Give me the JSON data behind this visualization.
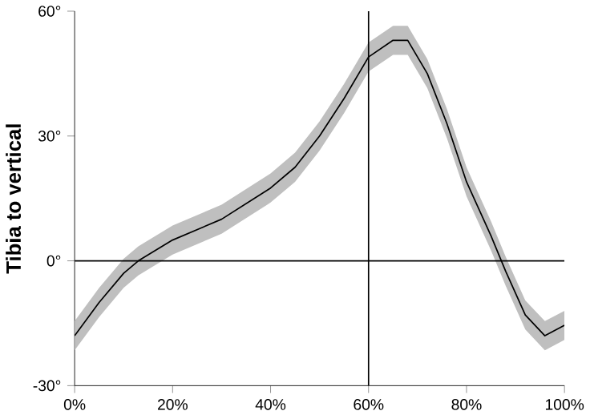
{
  "chart_data": {
    "type": "line",
    "ylabel": "Tibia to vertical",
    "x": [
      0,
      5,
      10,
      13,
      20,
      30,
      40,
      45,
      50,
      55,
      60,
      65,
      68,
      72,
      76,
      80,
      85,
      88,
      92,
      96,
      100
    ],
    "series": [
      {
        "color": "#000000",
        "values": [
          -18,
          -10,
          -3,
          0,
          5,
          10,
          17.5,
          22.5,
          30,
          39,
          49,
          53,
          53,
          45,
          33,
          19,
          6,
          -2.5,
          -13,
          -18,
          -15.5
        ],
        "lower": [
          -21.5,
          -13.5,
          -6.5,
          -3.5,
          1.5,
          6.5,
          14,
          19,
          26.5,
          35.5,
          45.5,
          49.5,
          49.5,
          41.5,
          29.5,
          15.5,
          2.5,
          -6,
          -16.5,
          -21.5,
          -19
        ],
        "upper": [
          -14.5,
          -6.5,
          0.5,
          3.5,
          8.5,
          13.5,
          21,
          26,
          33.5,
          42.5,
          52.5,
          56.5,
          56.5,
          48.5,
          36.5,
          22.5,
          9.5,
          1,
          -9.5,
          -14.5,
          -12
        ]
      }
    ],
    "xlim": [
      0,
      100
    ],
    "ylim": [
      -30,
      60
    ],
    "xticks": [
      {
        "value": 0,
        "label": "0%"
      },
      {
        "value": 20,
        "label": "20%"
      },
      {
        "value": 40,
        "label": "40%"
      },
      {
        "value": 60,
        "label": "60%"
      },
      {
        "value": 80,
        "label": "80%"
      },
      {
        "value": 100,
        "label": "100%"
      }
    ],
    "yticks": [
      {
        "value": -30,
        "label": "-30°"
      },
      {
        "value": 0,
        "label": "0°"
      },
      {
        "value": 30,
        "label": "30°"
      },
      {
        "value": 60,
        "label": "60°"
      }
    ],
    "ref_lines": [
      {
        "axis": "y",
        "value": 0,
        "color": "#000000"
      },
      {
        "axis": "x",
        "value": 60,
        "color": "#000000"
      }
    ],
    "grid": false
  }
}
